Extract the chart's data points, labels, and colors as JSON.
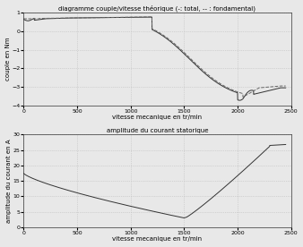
{
  "title1": "diagramme couple/vitesse théorique (-: total, -- : fondamental)",
  "title2": "amplitude du courant statorique",
  "xlabel": "vitesse mecanique en tr/min",
  "ylabel1": "couple en Nm",
  "ylabel2": "amplitude du courant en A",
  "xlim": [
    0,
    2500
  ],
  "ylim1": [
    -4,
    1
  ],
  "ylim2": [
    0,
    30
  ],
  "yticks1": [
    -4,
    -3,
    -2,
    -1,
    0,
    1
  ],
  "yticks2": [
    0,
    5,
    10,
    15,
    20,
    25,
    30
  ],
  "xticks": [
    0,
    500,
    1000,
    1500,
    2000,
    2500
  ],
  "bg_color": "#e8e8e8",
  "plot_bg": "#e8e8e8",
  "line_color_solid": "#333333",
  "line_color_dash": "#666666",
  "grid_color": "#bbbbbb",
  "figsize": [
    3.38,
    2.76
  ],
  "dpi": 100
}
